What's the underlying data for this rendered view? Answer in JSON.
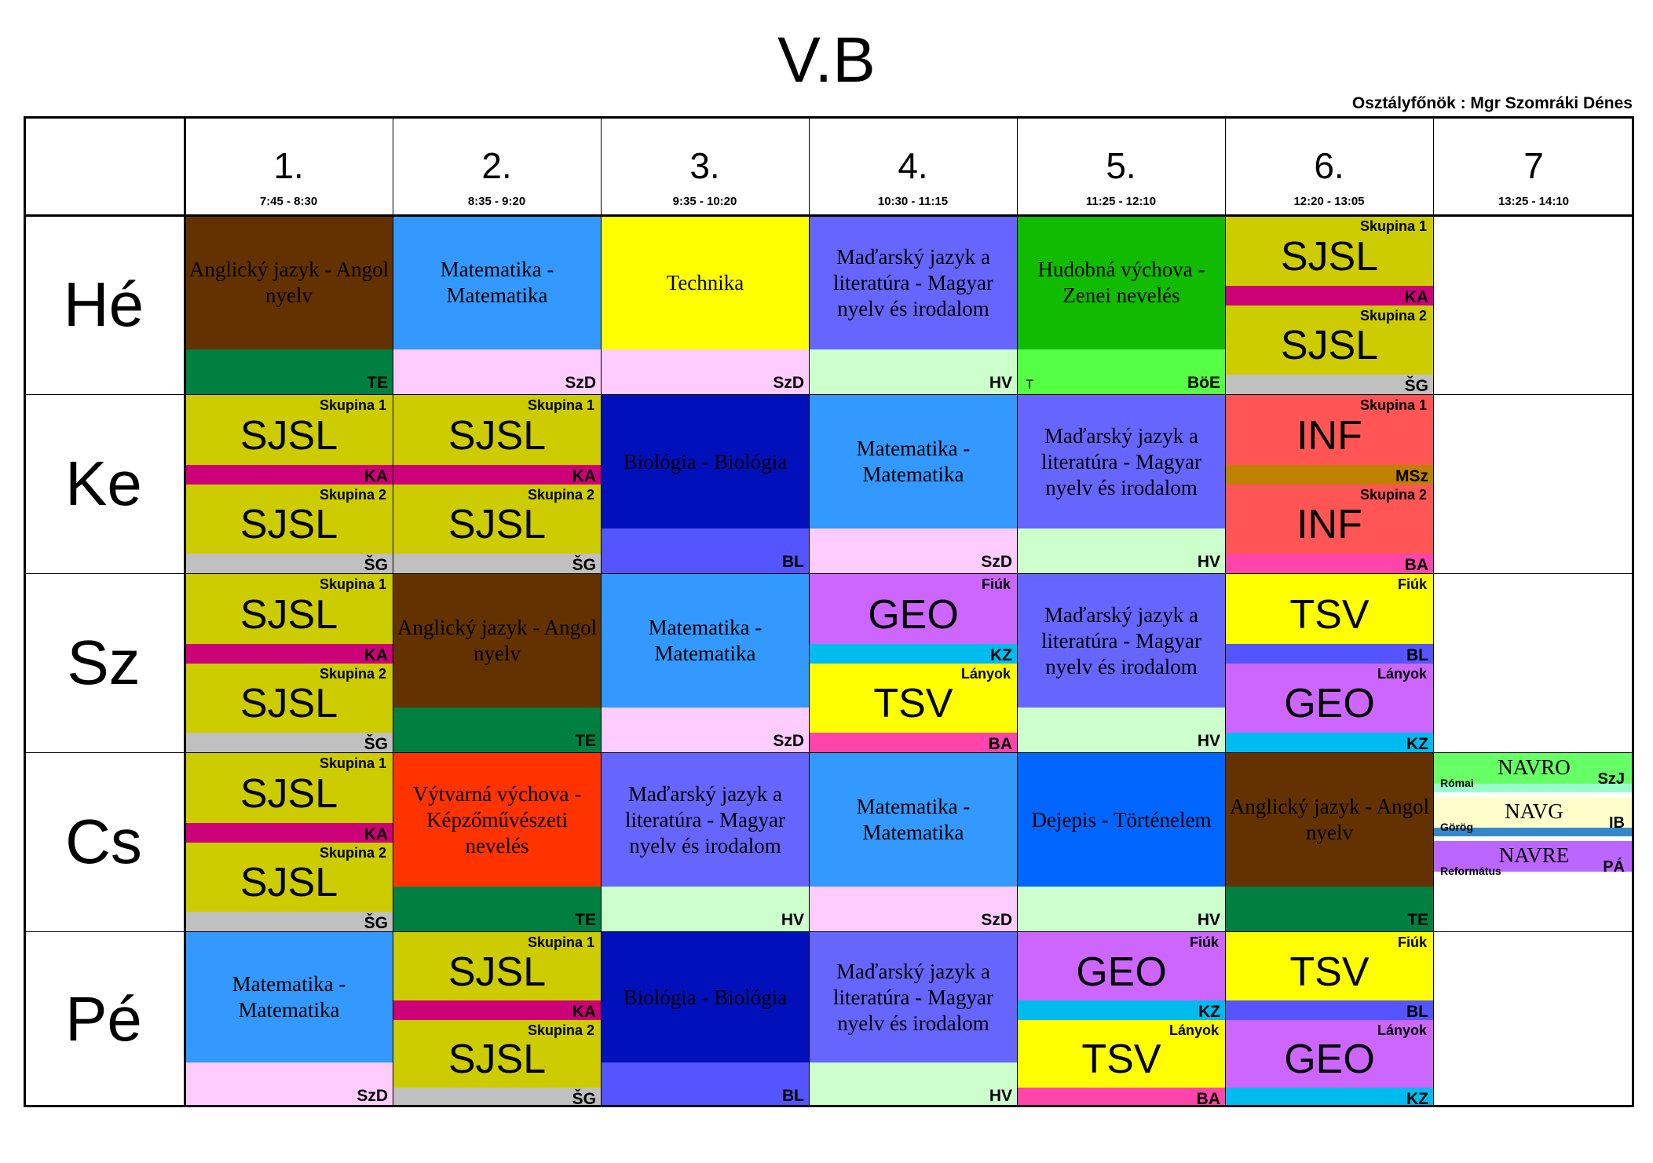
{
  "title": "V.B",
  "teacher": "Osztályfőnök : Mgr Szomráki Dénes",
  "periods": [
    {
      "num": "1.",
      "time": "7:45 - 8:30"
    },
    {
      "num": "2.",
      "time": "8:35 - 9:20"
    },
    {
      "num": "3.",
      "time": "9:35 - 10:20"
    },
    {
      "num": "4.",
      "time": "10:30 - 11:15"
    },
    {
      "num": "5.",
      "time": "11:25 - 12:10"
    },
    {
      "num": "6.",
      "time": "12:20 - 13:05"
    },
    {
      "num": "7",
      "time": "13:25 - 14:10"
    }
  ],
  "days": [
    "Hé",
    "Ke",
    "Sz",
    "Cs",
    "Pé"
  ],
  "colors": {
    "brown": "#643200",
    "blue": "#3399ff",
    "yellow": "#ffff00",
    "violet": "#6666ff",
    "green": "#11bb00",
    "olive": "#cccc00",
    "navy": "#0011bb",
    "red": "#ff5555",
    "orange": "#ff3300",
    "royal": "#0066ff",
    "purple": "#cc66ff",
    "TE": "#008040",
    "SzD": "#ffccff",
    "HV": "#ccffcc",
    "BoE": "#55ff44",
    "KA": "#cc0077",
    "SG": "#c0c0c0",
    "BL": "#5555ff",
    "MSz": "#c08000",
    "BA": "#ff44aa",
    "KZ": "#00bbee"
  },
  "rows": [
    [
      {
        "kind": "single",
        "subject": "Anglický jazyk - Angol nyelv",
        "bg": "brown",
        "band": "TE",
        "code": "TE"
      },
      {
        "kind": "single",
        "subject": "Matematika - Matematika",
        "bg": "blue",
        "band": "SzD",
        "code": "SzD"
      },
      {
        "kind": "single",
        "subject": "Technika",
        "bg": "yellow",
        "band": "SzD",
        "code": "SzD"
      },
      {
        "kind": "single",
        "subject": "Maďarský jazyk a literatúra - Magyar nyelv és irodalom",
        "bg": "violet",
        "band": "HV",
        "code": "HV"
      },
      {
        "kind": "single",
        "subject": "Hudobná výchova - Zenei nevelés",
        "bg": "green",
        "band": "BoE",
        "code": "BöE",
        "room": "T"
      },
      {
        "kind": "split",
        "halves": [
          {
            "label": "Skupina 1",
            "subject": "SJSL",
            "bg": "olive",
            "band": "KA",
            "code": "KA"
          },
          {
            "label": "Skupina 2",
            "subject": "SJSL",
            "bg": "olive",
            "band": "SG",
            "code": "ŠG"
          }
        ]
      },
      {
        "kind": "empty"
      }
    ],
    [
      {
        "kind": "split",
        "halves": [
          {
            "label": "Skupina 1",
            "subject": "SJSL",
            "bg": "olive",
            "band": "KA",
            "code": "KA"
          },
          {
            "label": "Skupina 2",
            "subject": "SJSL",
            "bg": "olive",
            "band": "SG",
            "code": "ŠG"
          }
        ]
      },
      {
        "kind": "split",
        "halves": [
          {
            "label": "Skupina 1",
            "subject": "SJSL",
            "bg": "olive",
            "band": "KA",
            "code": "KA"
          },
          {
            "label": "Skupina 2",
            "subject": "SJSL",
            "bg": "olive",
            "band": "SG",
            "code": "ŠG"
          }
        ]
      },
      {
        "kind": "single",
        "subject": "Biológia - Biológia",
        "bg": "navy",
        "band": "BL",
        "code": "BL"
      },
      {
        "kind": "single",
        "subject": "Matematika - Matematika",
        "bg": "blue",
        "band": "SzD",
        "code": "SzD"
      },
      {
        "kind": "single",
        "subject": "Maďarský jazyk a literatúra - Magyar nyelv és irodalom",
        "bg": "violet",
        "band": "HV",
        "code": "HV"
      },
      {
        "kind": "split",
        "halves": [
          {
            "label": "Skupina 1",
            "subject": "INF",
            "bg": "red",
            "band": "MSz",
            "code": "MSz"
          },
          {
            "label": "Skupina 2",
            "subject": "INF",
            "bg": "red",
            "band": "BA",
            "code": "BA"
          }
        ]
      },
      {
        "kind": "empty"
      }
    ],
    [
      {
        "kind": "split",
        "halves": [
          {
            "label": "Skupina 1",
            "subject": "SJSL",
            "bg": "olive",
            "band": "KA",
            "code": "KA"
          },
          {
            "label": "Skupina 2",
            "subject": "SJSL",
            "bg": "olive",
            "band": "SG",
            "code": "ŠG"
          }
        ]
      },
      {
        "kind": "single",
        "subject": "Anglický jazyk - Angol nyelv",
        "bg": "brown",
        "band": "TE",
        "code": "TE"
      },
      {
        "kind": "single",
        "subject": "Matematika - Matematika",
        "bg": "blue",
        "band": "SzD",
        "code": "SzD"
      },
      {
        "kind": "split",
        "halves": [
          {
            "label": "Fiúk",
            "subject": "GEO",
            "bg": "purple",
            "band": "KZ",
            "code": "KZ"
          },
          {
            "label": "Lányok",
            "subject": "TSV",
            "bg": "yellow",
            "band": "BA",
            "code": "BA"
          }
        ]
      },
      {
        "kind": "single",
        "subject": "Maďarský jazyk a literatúra - Magyar nyelv és irodalom",
        "bg": "violet",
        "band": "HV",
        "code": "HV"
      },
      {
        "kind": "split",
        "halves": [
          {
            "label": "Fiúk",
            "subject": "TSV",
            "bg": "yellow",
            "band": "BL",
            "code": "BL"
          },
          {
            "label": "Lányok",
            "subject": "GEO",
            "bg": "purple",
            "band": "KZ",
            "code": "KZ"
          }
        ]
      },
      {
        "kind": "empty"
      }
    ],
    [
      {
        "kind": "split",
        "halves": [
          {
            "label": "Skupina 1",
            "subject": "SJSL",
            "bg": "olive",
            "band": "KA",
            "code": "KA"
          },
          {
            "label": "Skupina 2",
            "subject": "SJSL",
            "bg": "olive",
            "band": "SG",
            "code": "ŠG"
          }
        ]
      },
      {
        "kind": "single",
        "subject": "Výtvarná výchova - Képzőművészeti nevelés",
        "bg": "orange",
        "band": "TE",
        "code": "TE"
      },
      {
        "kind": "single",
        "subject": "Maďarský jazyk a literatúra - Magyar nyelv és irodalom",
        "bg": "violet",
        "band": "HV",
        "code": "HV"
      },
      {
        "kind": "single",
        "subject": "Matematika - Matematika",
        "bg": "blue",
        "band": "SzD",
        "code": "SzD"
      },
      {
        "kind": "single",
        "subject": "Dejepis - Történelem",
        "bg": "royal",
        "band": "HV",
        "code": "HV"
      },
      {
        "kind": "single",
        "subject": "Anglický jazyk - Angol nyelv",
        "bg": "brown",
        "band": "TE",
        "code": "TE"
      },
      {
        "kind": "triple",
        "items": [
          {
            "subject": "NAVRO",
            "role": "Római",
            "code": "SzJ",
            "bg": "#66ff66",
            "band": "#99ffcc"
          },
          {
            "subject": "NAVG",
            "role": "Görög",
            "code": "IB",
            "bg": "#ffffcc",
            "band": "#3388cc"
          },
          {
            "subject": "NAVRE",
            "role": "Református",
            "code": "PÁ",
            "bg": "#bb66ff",
            "band": "#ffffff"
          }
        ]
      }
    ],
    [
      {
        "kind": "single",
        "subject": "Matematika - Matematika",
        "bg": "blue",
        "band": "SzD",
        "code": "SzD"
      },
      {
        "kind": "split",
        "halves": [
          {
            "label": "Skupina 1",
            "subject": "SJSL",
            "bg": "olive",
            "band": "KA",
            "code": "KA"
          },
          {
            "label": "Skupina 2",
            "subject": "SJSL",
            "bg": "olive",
            "band": "SG",
            "code": "ŠG"
          }
        ]
      },
      {
        "kind": "single",
        "subject": "Biológia - Biológia",
        "bg": "navy",
        "band": "BL",
        "code": "BL"
      },
      {
        "kind": "single",
        "subject": "Maďarský jazyk a literatúra - Magyar nyelv és irodalom",
        "bg": "violet",
        "band": "HV",
        "code": "HV"
      },
      {
        "kind": "split",
        "halves": [
          {
            "label": "Fiúk",
            "subject": "GEO",
            "bg": "purple",
            "band": "KZ",
            "code": "KZ"
          },
          {
            "label": "Lányok",
            "subject": "TSV",
            "bg": "yellow",
            "band": "BA",
            "code": "BA"
          }
        ]
      },
      {
        "kind": "split",
        "halves": [
          {
            "label": "Fiúk",
            "subject": "TSV",
            "bg": "yellow",
            "band": "BL",
            "code": "BL"
          },
          {
            "label": "Lányok",
            "subject": "GEO",
            "bg": "purple",
            "band": "KZ",
            "code": "KZ"
          }
        ]
      },
      {
        "kind": "empty"
      }
    ]
  ]
}
